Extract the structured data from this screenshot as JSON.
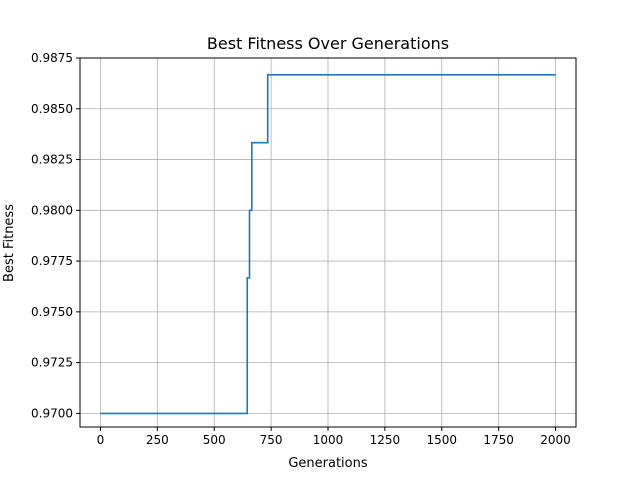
{
  "chart_data": {
    "type": "line",
    "title": "Best Fitness Over Generations",
    "xlabel": "Generations",
    "ylabel": "Best Fitness",
    "xlim": [
      -90,
      2090
    ],
    "ylim": [
      0.96933,
      0.9875
    ],
    "xticks": [
      0,
      250,
      500,
      750,
      1000,
      1250,
      1500,
      1750,
      2000
    ],
    "yticks": [
      0.97,
      0.9725,
      0.975,
      0.9775,
      0.98,
      0.9825,
      0.985,
      0.9875
    ],
    "xtick_labels": [
      "0",
      "250",
      "500",
      "750",
      "1000",
      "1250",
      "1500",
      "1750",
      "2000"
    ],
    "ytick_labels": [
      "0.9700",
      "0.9725",
      "0.9750",
      "0.9775",
      "0.9800",
      "0.9825",
      "0.9850",
      "0.9875"
    ],
    "grid": true,
    "line_color": "#1f77b4",
    "series": [
      {
        "step": true,
        "x": [
          0,
          645,
          655,
          665,
          735,
          2000
        ],
        "y": [
          0.97,
          0.97667,
          0.98,
          0.98333,
          0.98667,
          0.98667
        ]
      }
    ]
  }
}
